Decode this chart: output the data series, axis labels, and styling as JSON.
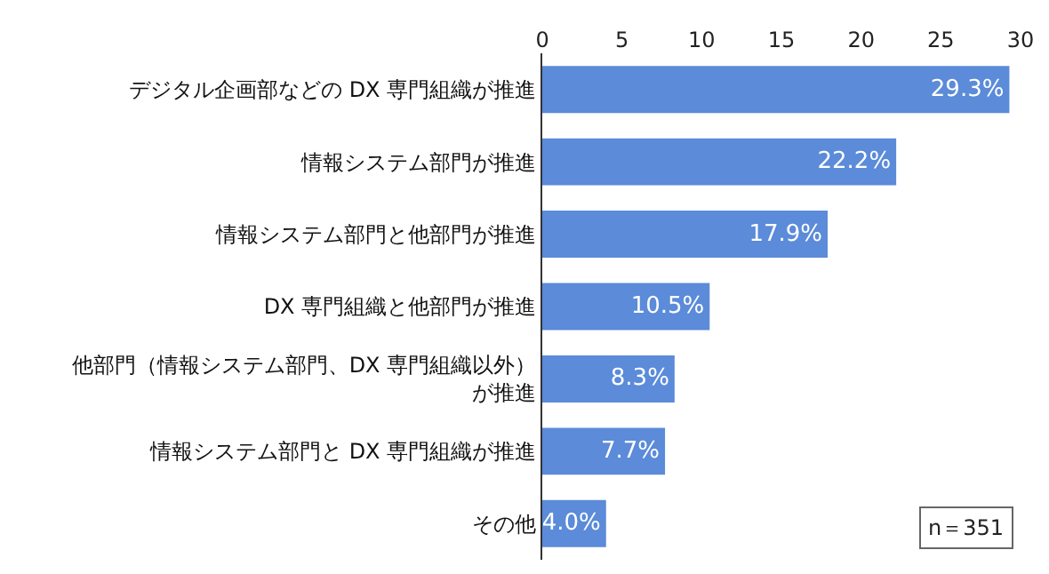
{
  "chart_data": {
    "type": "bar",
    "orientation": "horizontal",
    "categories": [
      "デジタル企画部などの DX 専門組織が推進",
      "情報システム部門が推進",
      "情報システム部門と他部門が推進",
      "DX 専門組織と他部門が推進",
      "他部門（情報システム部門、DX 専門組織以外）が推進",
      "情報システム部門と DX 専門組織が推進",
      "その他"
    ],
    "values": [
      29.3,
      22.2,
      17.9,
      10.5,
      8.3,
      7.7,
      4.0
    ],
    "value_labels": [
      "29.3%",
      "22.2%",
      "17.9%",
      "10.5%",
      "8.3%",
      "7.7%",
      "4.0%"
    ],
    "color": "#5b8bd9",
    "xlim": [
      0,
      30
    ],
    "xticks": [
      0,
      5,
      10,
      15,
      20,
      25,
      30
    ],
    "annotations": [
      "n＝351"
    ]
  }
}
